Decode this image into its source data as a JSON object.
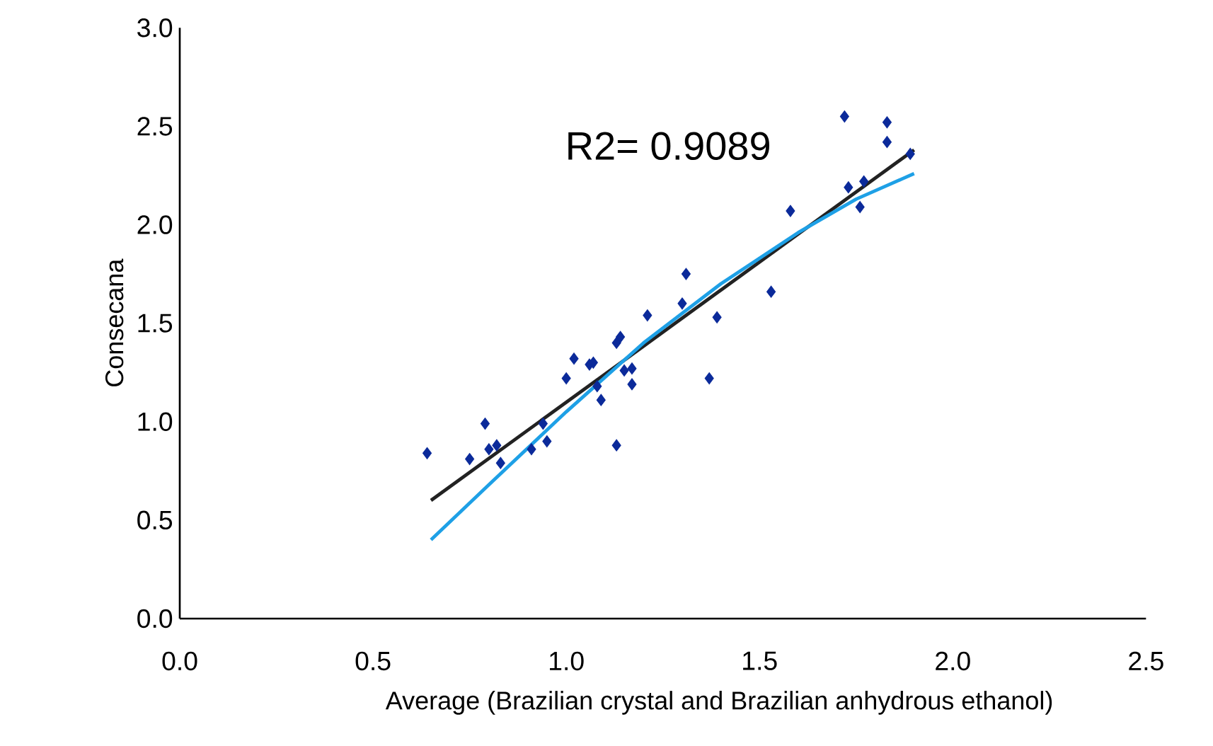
{
  "chart_data": {
    "type": "scatter",
    "xlabel": "Average (Brazilian crystal and Brazilian anhydrous ethanol)",
    "ylabel": "Consecana",
    "annotations": [
      "R2= 0.9089"
    ],
    "xlim": [
      0,
      2.5
    ],
    "ylim": [
      0,
      3
    ],
    "xticks": [
      {
        "value": 0,
        "label": "0.0"
      },
      0.5,
      {
        "value": 1,
        "label": "1.0"
      },
      1.5,
      {
        "value": 2,
        "label": "2.0"
      },
      2.5
    ],
    "yticks": [
      {
        "value": 0,
        "label": "0.0"
      },
      0.5,
      {
        "value": 1,
        "label": "1.0"
      },
      1.5,
      {
        "value": 2,
        "label": "2.0"
      },
      2.5,
      {
        "value": 3,
        "label": "3.0"
      }
    ],
    "grid": false,
    "legend": false,
    "series": [
      {
        "color": "#0b2a9a",
        "marker": "diamond",
        "x": [
          0.64,
          0.75,
          0.79,
          0.8,
          0.82,
          0.83,
          0.91,
          0.94,
          0.95,
          1.0,
          1.02,
          1.06,
          1.07,
          1.08,
          1.09,
          1.13,
          1.13,
          1.14,
          1.15,
          1.17,
          1.17,
          1.21,
          1.3,
          1.31,
          1.37,
          1.39,
          1.53,
          1.58,
          1.72,
          1.73,
          1.76,
          1.77,
          1.83,
          1.83,
          1.89
        ],
        "values": [
          0.84,
          0.81,
          0.99,
          0.86,
          0.88,
          0.79,
          0.86,
          0.99,
          0.9,
          1.22,
          1.32,
          1.29,
          1.3,
          1.18,
          1.11,
          0.88,
          1.4,
          1.43,
          1.26,
          1.19,
          1.27,
          1.54,
          1.6,
          1.75,
          1.22,
          1.53,
          1.66,
          2.07,
          2.55,
          2.19,
          2.09,
          2.22,
          2.52,
          2.42,
          2.36
        ]
      },
      {
        "type": "line",
        "color": "#222222",
        "marker": "none",
        "line_style": "solid",
        "x": [
          0.65,
          1.9
        ],
        "values": [
          0.6,
          2.38
        ]
      },
      {
        "type": "line",
        "color": "#1ea0e6",
        "marker": "none",
        "line_style": "solid",
        "x": [
          0.65,
          0.8,
          1.0,
          1.2,
          1.4,
          1.6,
          1.75,
          1.9
        ],
        "values": [
          0.4,
          0.68,
          1.05,
          1.4,
          1.7,
          1.96,
          2.13,
          2.26
        ]
      }
    ]
  }
}
